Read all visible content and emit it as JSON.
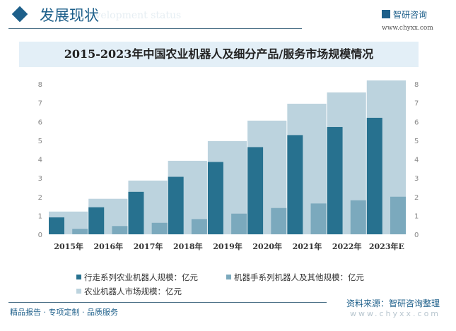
{
  "header": {
    "title": "发展现状",
    "subtitle": "Development status",
    "logo_name": "智研咨询",
    "logo_url": "www.chyxx.com"
  },
  "chart_data": {
    "type": "bar",
    "title": "2015-2023年中国农业机器人及细分产品/服务市场规模情况",
    "categories": [
      "2015年",
      "2016年",
      "2017年",
      "2018年",
      "2019年",
      "2020年",
      "2021年",
      "2022年",
      "2023年E"
    ],
    "ylim": [
      0,
      8
    ],
    "yticks": [
      "0",
      "1",
      "2",
      "3",
      "4",
      "5",
      "6",
      "7",
      "8"
    ],
    "grid": false,
    "legend_position": "bottom",
    "series": [
      {
        "name": "行走系列农业机器人规模：亿元",
        "color": "#27718f",
        "values": [
          0.9,
          1.44,
          2.26,
          3.06,
          3.85,
          4.64,
          5.28,
          5.71,
          6.2
        ]
      },
      {
        "name": "机器手系列机器人及其他规模：亿元",
        "color": "#7ba9bd",
        "values": [
          0.29,
          0.44,
          0.61,
          0.81,
          1.1,
          1.4,
          1.64,
          1.81,
          2.0
        ]
      },
      {
        "name": "农业机器人市场规模：亿元",
        "color": "#bcd3de",
        "values": [
          1.21,
          1.89,
          2.86,
          3.91,
          4.96,
          6.05,
          6.95,
          7.55,
          8.19
        ]
      }
    ]
  },
  "footer": {
    "left": "精品报告 · 专项定制 · 品质服务",
    "source": "资料来源：智研咨询整理",
    "url": "www.chyxx.com"
  }
}
